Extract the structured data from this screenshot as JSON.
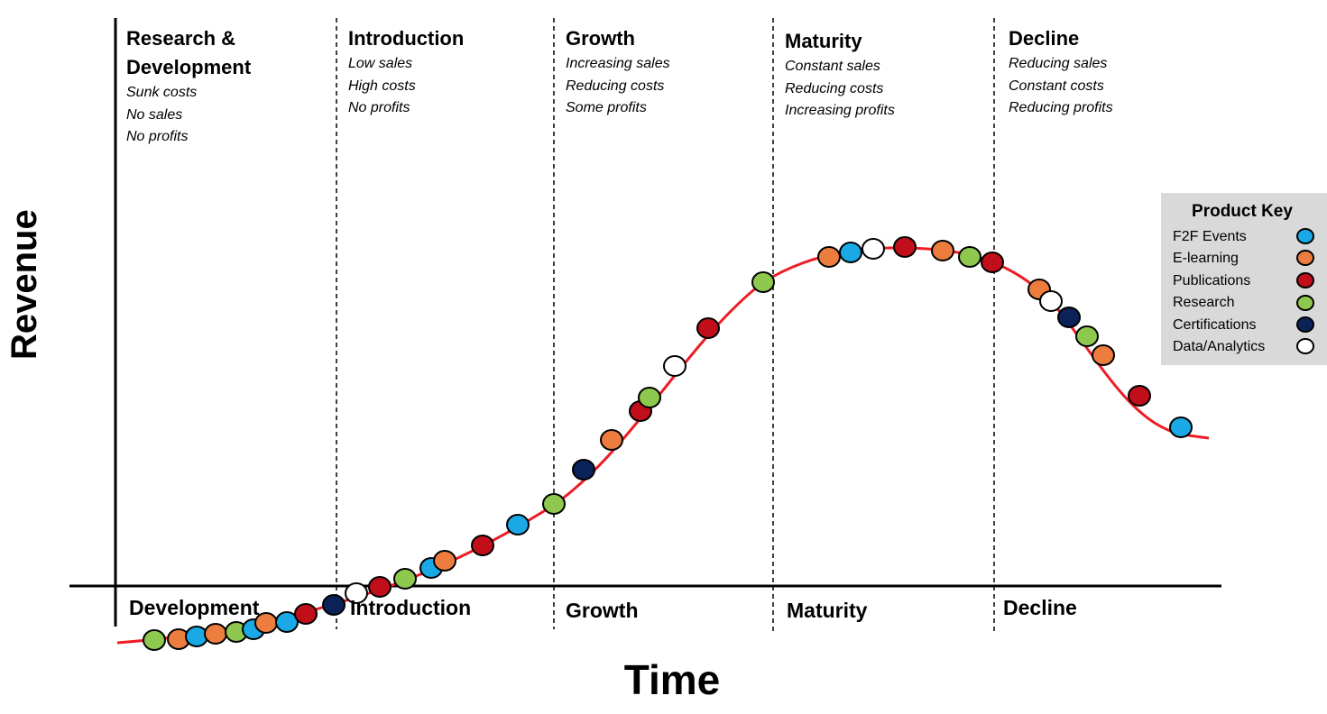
{
  "stages": [
    {
      "title": "Research &",
      "title2": "Development",
      "notes": [
        "Sunk costs",
        "No sales",
        "No profits"
      ]
    },
    {
      "title": "Introduction",
      "notes": [
        "Low sales",
        "High costs",
        "No profits"
      ]
    },
    {
      "title": "Growth",
      "notes": [
        "Increasing sales",
        "Reducing costs",
        "Some profits"
      ]
    },
    {
      "title": "Maturity",
      "notes": [
        "Constant sales",
        "Reducing costs",
        "Increasing profits"
      ]
    },
    {
      "title": "Decline",
      "notes": [
        "Reducing sales",
        "Constant costs",
        "Reducing profits"
      ]
    }
  ],
  "axis_stages": [
    "Development",
    "Introduction",
    "Growth",
    "Maturity",
    "Decline"
  ],
  "axes": {
    "y_title": "Revenue",
    "x_title": "Time"
  },
  "legend": {
    "title": "Product Key",
    "items": [
      {
        "label": "F2F Events",
        "color": "#1aa9e6"
      },
      {
        "label": "E-learning",
        "color": "#ec7d3f"
      },
      {
        "label": "Publications",
        "color": "#c00e1a"
      },
      {
        "label": "Research",
        "color": "#8ec84e"
      },
      {
        "label": "Certifications",
        "color": "#0b2258"
      },
      {
        "label": "Data/Analytics",
        "color": "#ffffff"
      }
    ]
  },
  "curve_color": "#ee1c24",
  "products_on_curve": {
    "development": [
      "Research",
      "E-learning",
      "F2F Events",
      "E-learning",
      "Research",
      "F2F Events",
      "E-learning",
      "F2F Events",
      "Publications"
    ],
    "introduction": [
      "Certifications",
      "Data/Analytics",
      "Publications",
      "Research",
      "F2F Events",
      "E-learning",
      "Publications",
      "F2F Events"
    ],
    "growth": [
      "Research",
      "Certifications",
      "E-learning",
      "Publications",
      "Research",
      "Data/Analytics",
      "Publications",
      "Research"
    ],
    "maturity": [
      "E-learning",
      "F2F Events",
      "Data/Analytics",
      "Publications",
      "E-learning",
      "Research",
      "Publications"
    ],
    "decline": [
      "E-learning",
      "Data/Analytics",
      "Certifications",
      "Research",
      "E-learning",
      "Publications",
      "F2F Events"
    ]
  }
}
